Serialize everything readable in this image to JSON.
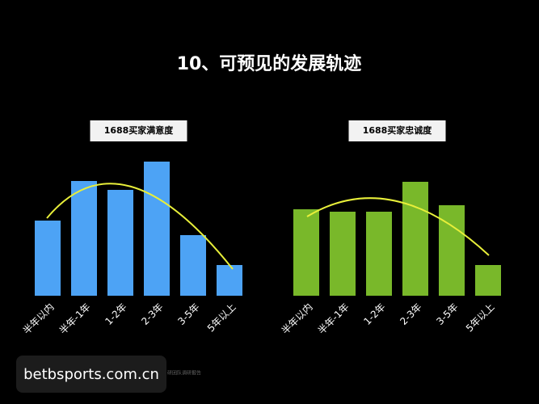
{
  "title": "10、可预见的发展轨迹",
  "chart_data": [
    {
      "type": "bar",
      "title": "1688买家满意度",
      "color": "#4da3f5",
      "categories": [
        "半年以内",
        "半年-1年",
        "1-2年",
        "2-3年",
        "3-5年",
        "5年以上"
      ],
      "values": [
        93,
        142,
        131,
        166,
        75,
        38
      ]
    },
    {
      "type": "bar",
      "title": "1688买家忠诚度",
      "color": "#79b82a",
      "categories": [
        "半年以内",
        "半年-1年",
        "1-2年",
        "2-3年",
        "3-5年",
        "5年以上"
      ],
      "values": [
        107,
        104,
        104,
        141,
        112,
        38
      ]
    }
  ],
  "footnote": "研团队调研报告",
  "watermark": "betbsports.com.cn"
}
